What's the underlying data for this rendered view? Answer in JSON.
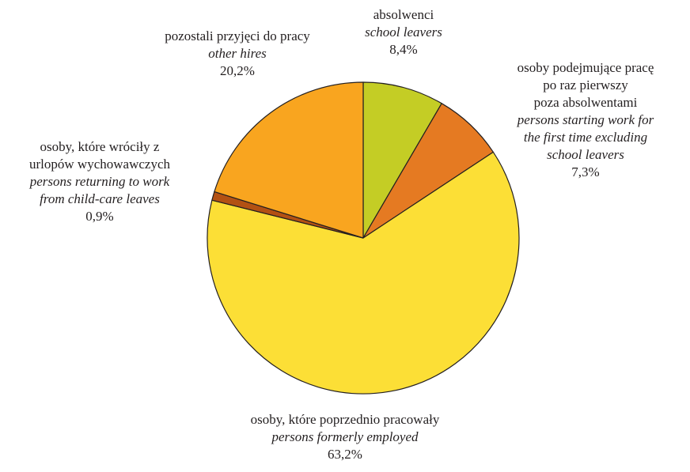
{
  "chart_data": {
    "type": "pie",
    "start": "top",
    "direction": "clockwise",
    "slices": [
      {
        "pl": "absolwenci",
        "en": "school leavers",
        "value": 8.4,
        "label": "8,4%",
        "color": "#c4cd25"
      },
      {
        "pl": "osoby podejmujące pracę po raz pierwszy poza absolwentami",
        "en": "persons starting work for the first time excluding school leavers",
        "value": 7.3,
        "label": "7,3%",
        "color": "#e57a22"
      },
      {
        "pl": "osoby, które poprzednio pracowały",
        "en": "persons formerly employed",
        "value": 63.2,
        "label": "63,2%",
        "color": "#fcdf36"
      },
      {
        "pl": "osoby, które wróciły z urlopów wychowawczych",
        "en": "persons returning to work from child-care leaves",
        "value": 0.9,
        "label": "0,9%",
        "color": "#b35113"
      },
      {
        "pl": "pozostali przyjęci do pracy",
        "en": "other hires",
        "value": 20.2,
        "label": "20,2%",
        "color": "#f9a51f"
      }
    ]
  },
  "labels": {
    "school_leavers": {
      "pl": "absolwenci",
      "en": "school leavers",
      "pct": "8,4%"
    },
    "first_time": {
      "pl_1": "osoby podejmujące pracę",
      "pl_2": "po raz pierwszy",
      "pl_3": "poza absolwentami",
      "en_1": "persons starting work for",
      "en_2": "the first time excluding",
      "en_3": "school leavers",
      "pct": "7,3%"
    },
    "formerly": {
      "pl": "osoby, które poprzednio pracowały",
      "en": "persons formerly employed",
      "pct": "63,2%"
    },
    "child_care": {
      "pl_1": "osoby, które wróciły z",
      "pl_2": "urlopów wychowawczych",
      "en_1": "persons returning to work",
      "en_2": "from child-care leaves",
      "pct": "0,9%"
    },
    "other": {
      "pl": "pozostali przyjęci do pracy",
      "en": "other hires",
      "pct": "20,2%"
    }
  }
}
